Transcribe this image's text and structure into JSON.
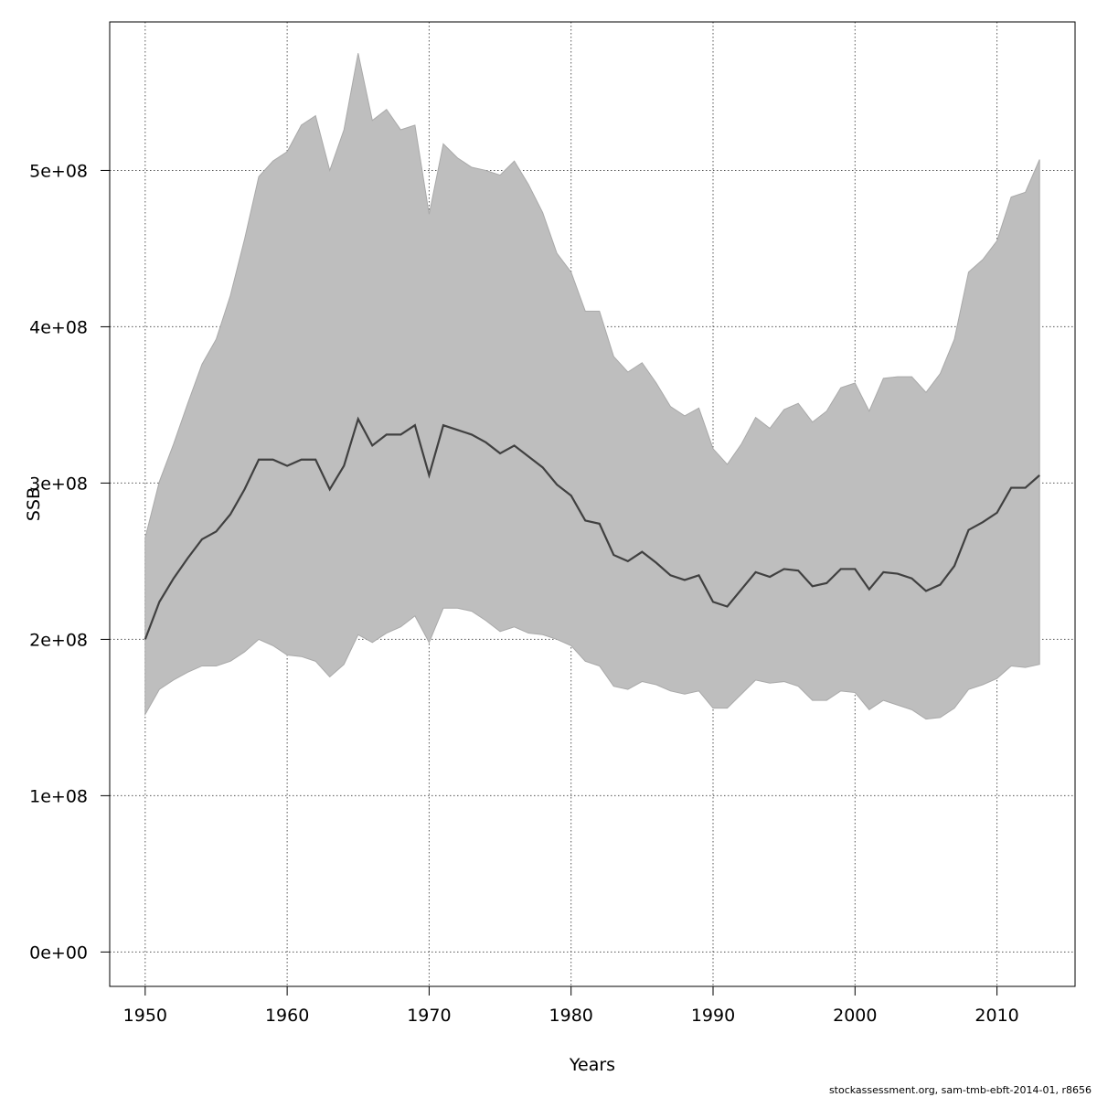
{
  "chart_data": {
    "type": "area",
    "xlabel": "Years",
    "ylabel": "SSB",
    "xlim": [
      1947.5,
      2015.5
    ],
    "ylim": [
      -22000000,
      595000000
    ],
    "grid": true,
    "x_ticks": [
      1950,
      1960,
      1970,
      1980,
      1990,
      2000,
      2010
    ],
    "y_ticks": [
      0,
      100000000,
      200000000,
      300000000,
      400000000,
      500000000
    ],
    "x_tick_labels": [
      "1950",
      "1960",
      "1970",
      "1980",
      "1990",
      "2000",
      "2010"
    ],
    "y_tick_labels": [
      "0e+00",
      "1e+08",
      "2e+08",
      "3e+08",
      "4e+08",
      "5e+08"
    ],
    "x": [
      1950,
      1951,
      1952,
      1953,
      1954,
      1955,
      1956,
      1957,
      1958,
      1959,
      1960,
      1961,
      1962,
      1963,
      1964,
      1965,
      1966,
      1967,
      1968,
      1969,
      1970,
      1971,
      1972,
      1973,
      1974,
      1975,
      1976,
      1977,
      1978,
      1979,
      1980,
      1981,
      1982,
      1983,
      1984,
      1985,
      1986,
      1987,
      1988,
      1989,
      1990,
      1991,
      1992,
      1993,
      1994,
      1995,
      1996,
      1997,
      1998,
      1999,
      2000,
      2001,
      2002,
      2003,
      2004,
      2005,
      2006,
      2007,
      2008,
      2009,
      2010,
      2011,
      2012,
      2013
    ],
    "series": [
      {
        "values": [
          200,
          224,
          239,
          252,
          264,
          269,
          280,
          296,
          315,
          315,
          311,
          315,
          315,
          296,
          311,
          341,
          324,
          331,
          331,
          337,
          305,
          337,
          334,
          331,
          326,
          319,
          324,
          317,
          310,
          299,
          292,
          276,
          274,
          254,
          250,
          256,
          249,
          241,
          238,
          241,
          224,
          221,
          232,
          243,
          240,
          245,
          244,
          234,
          236,
          245,
          245,
          232,
          243,
          242,
          239,
          231,
          235,
          247,
          270,
          275,
          281,
          297,
          297,
          305
        ],
        "lower": [
          152,
          168,
          174,
          179,
          183,
          183,
          186,
          192,
          200,
          196,
          190,
          189,
          186,
          176,
          184,
          203,
          198,
          204,
          208,
          215,
          198,
          220,
          220,
          218,
          212,
          205,
          208,
          204,
          203,
          200,
          196,
          186,
          183,
          170,
          168,
          173,
          171,
          167,
          165,
          167,
          156,
          156,
          165,
          174,
          172,
          173,
          170,
          161,
          161,
          167,
          166,
          155,
          161,
          158,
          155,
          149,
          150,
          156,
          168,
          171,
          175,
          183,
          182,
          184
        ],
        "upper": [
          265,
          301,
          325,
          351,
          376,
          392,
          420,
          456,
          496,
          506,
          512,
          529,
          535,
          500,
          526,
          575,
          532,
          539,
          526,
          529,
          472,
          517,
          508,
          502,
          500,
          497,
          506,
          491,
          473,
          447,
          435,
          410,
          410,
          381,
          371,
          377,
          364,
          349,
          343,
          348,
          322,
          312,
          325,
          342,
          335,
          347,
          351,
          339,
          346,
          361,
          364,
          346,
          367,
          368,
          368,
          358,
          370,
          392,
          435,
          443,
          455,
          483,
          486,
          507
        ]
      }
    ],
    "value_unit_multiplier": 1000000,
    "colors": {
      "band": "#bebebe",
      "band_edge": "#a9a9a9",
      "line": "#404040",
      "grid": "#555555",
      "axis": "#000000"
    }
  },
  "footer": "stockassessment.org, sam-tmb-ebft-2014-01, r8656"
}
